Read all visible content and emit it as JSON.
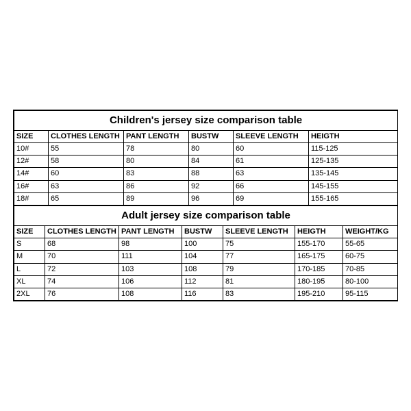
{
  "children": {
    "title": "Children's jersey size comparison table",
    "columns": [
      "SIZE",
      "CLOTHES LENGTH",
      "PANT LENGTH",
      "BUSTW",
      "SLEEVE LENGTH",
      "HEIGTH"
    ],
    "rows": [
      [
        "10#",
        "55",
        "78",
        "80",
        "60",
        "115-125"
      ],
      [
        "12#",
        "58",
        "80",
        "84",
        "61",
        "125-135"
      ],
      [
        "14#",
        "60",
        "83",
        "88",
        "63",
        "135-145"
      ],
      [
        "16#",
        "63",
        "86",
        "92",
        "66",
        "145-155"
      ],
      [
        "18#",
        "65",
        "89",
        "96",
        "69",
        "155-165"
      ]
    ]
  },
  "adult": {
    "title": "Adult jersey size comparison table",
    "columns": [
      "SIZE",
      "CLOTHES LENGTH",
      "PANT LENGTH",
      "BUSTW",
      "SLEEVE LENGTH",
      "HEIGTH",
      "WEIGHT/KG"
    ],
    "rows": [
      [
        "S",
        "68",
        "98",
        "100",
        "75",
        "155-170",
        "55-65"
      ],
      [
        "M",
        "70",
        "111",
        "104",
        "77",
        "165-175",
        "60-75"
      ],
      [
        "L",
        "72",
        "103",
        "108",
        "79",
        "170-185",
        "70-85"
      ],
      [
        "XL",
        "74",
        "106",
        "112",
        "81",
        "180-195",
        "80-100"
      ],
      [
        "2XL",
        "76",
        "108",
        "116",
        "83",
        "195-210",
        "95-115"
      ]
    ]
  },
  "styling": {
    "font_family": "Arial",
    "cell_fontsize_pt": 11,
    "title_fontsize_pt": 15,
    "border_color": "#000000",
    "background_color": "#ffffff",
    "text_color": "#000000"
  }
}
